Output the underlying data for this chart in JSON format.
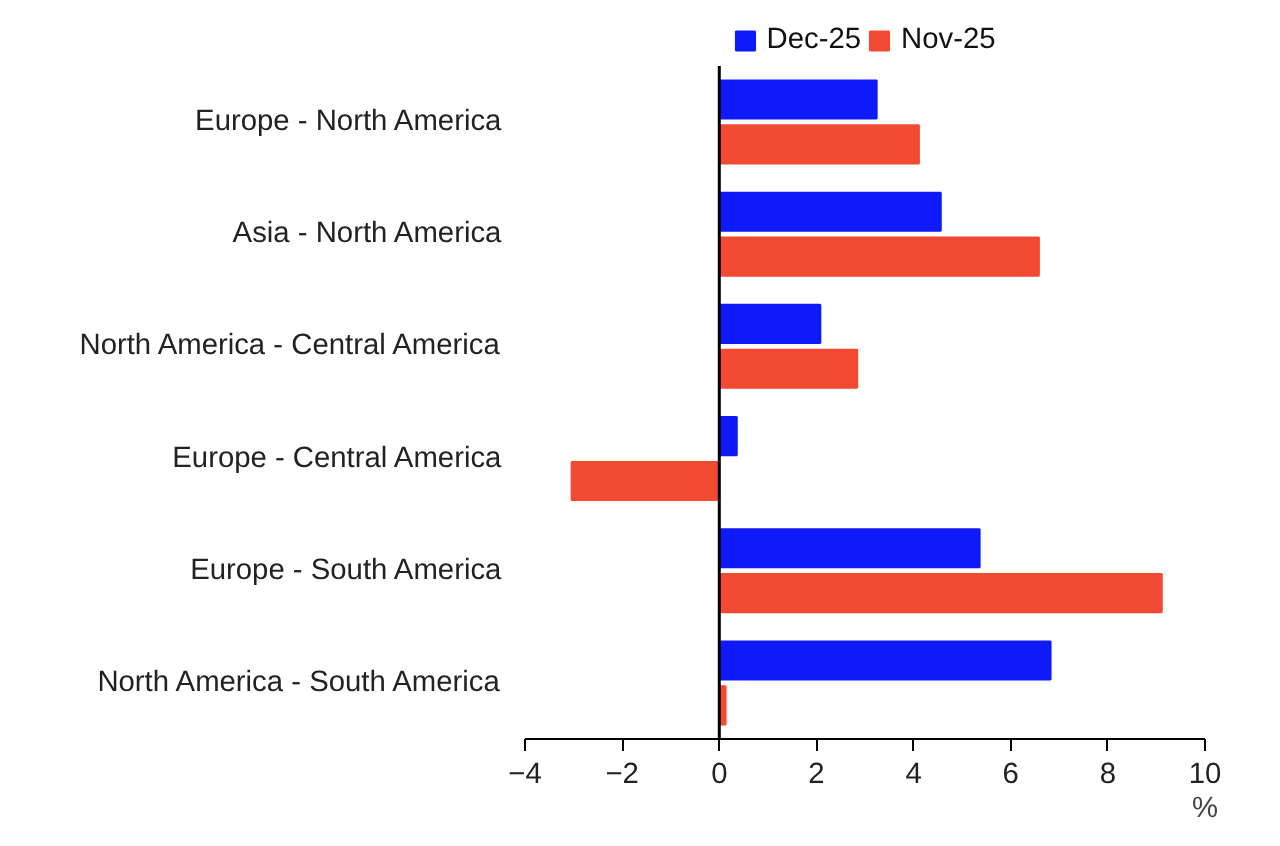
{
  "chart_data": {
    "type": "bar",
    "orientation": "horizontal",
    "categories": [
      "Europe - North America",
      "Asia - North America",
      "North America - Central America",
      "Europe - Central America",
      "Europe - South America",
      "North America - South America"
    ],
    "series": [
      {
        "name": "Dec-25",
        "color": "#0f1afa",
        "values": [
          3.24,
          4.56,
          2.08,
          0.36,
          5.36,
          6.82
        ]
      },
      {
        "name": "Nov-25",
        "color": "#f24a33",
        "values": [
          4.11,
          6.58,
          2.84,
          -3.04,
          9.11,
          0.13
        ]
      }
    ],
    "xlabel": "%",
    "xlim": [
      -4,
      10
    ],
    "xticks": [
      -4,
      -2,
      0,
      2,
      4,
      6,
      8,
      10
    ],
    "legend": "top"
  }
}
